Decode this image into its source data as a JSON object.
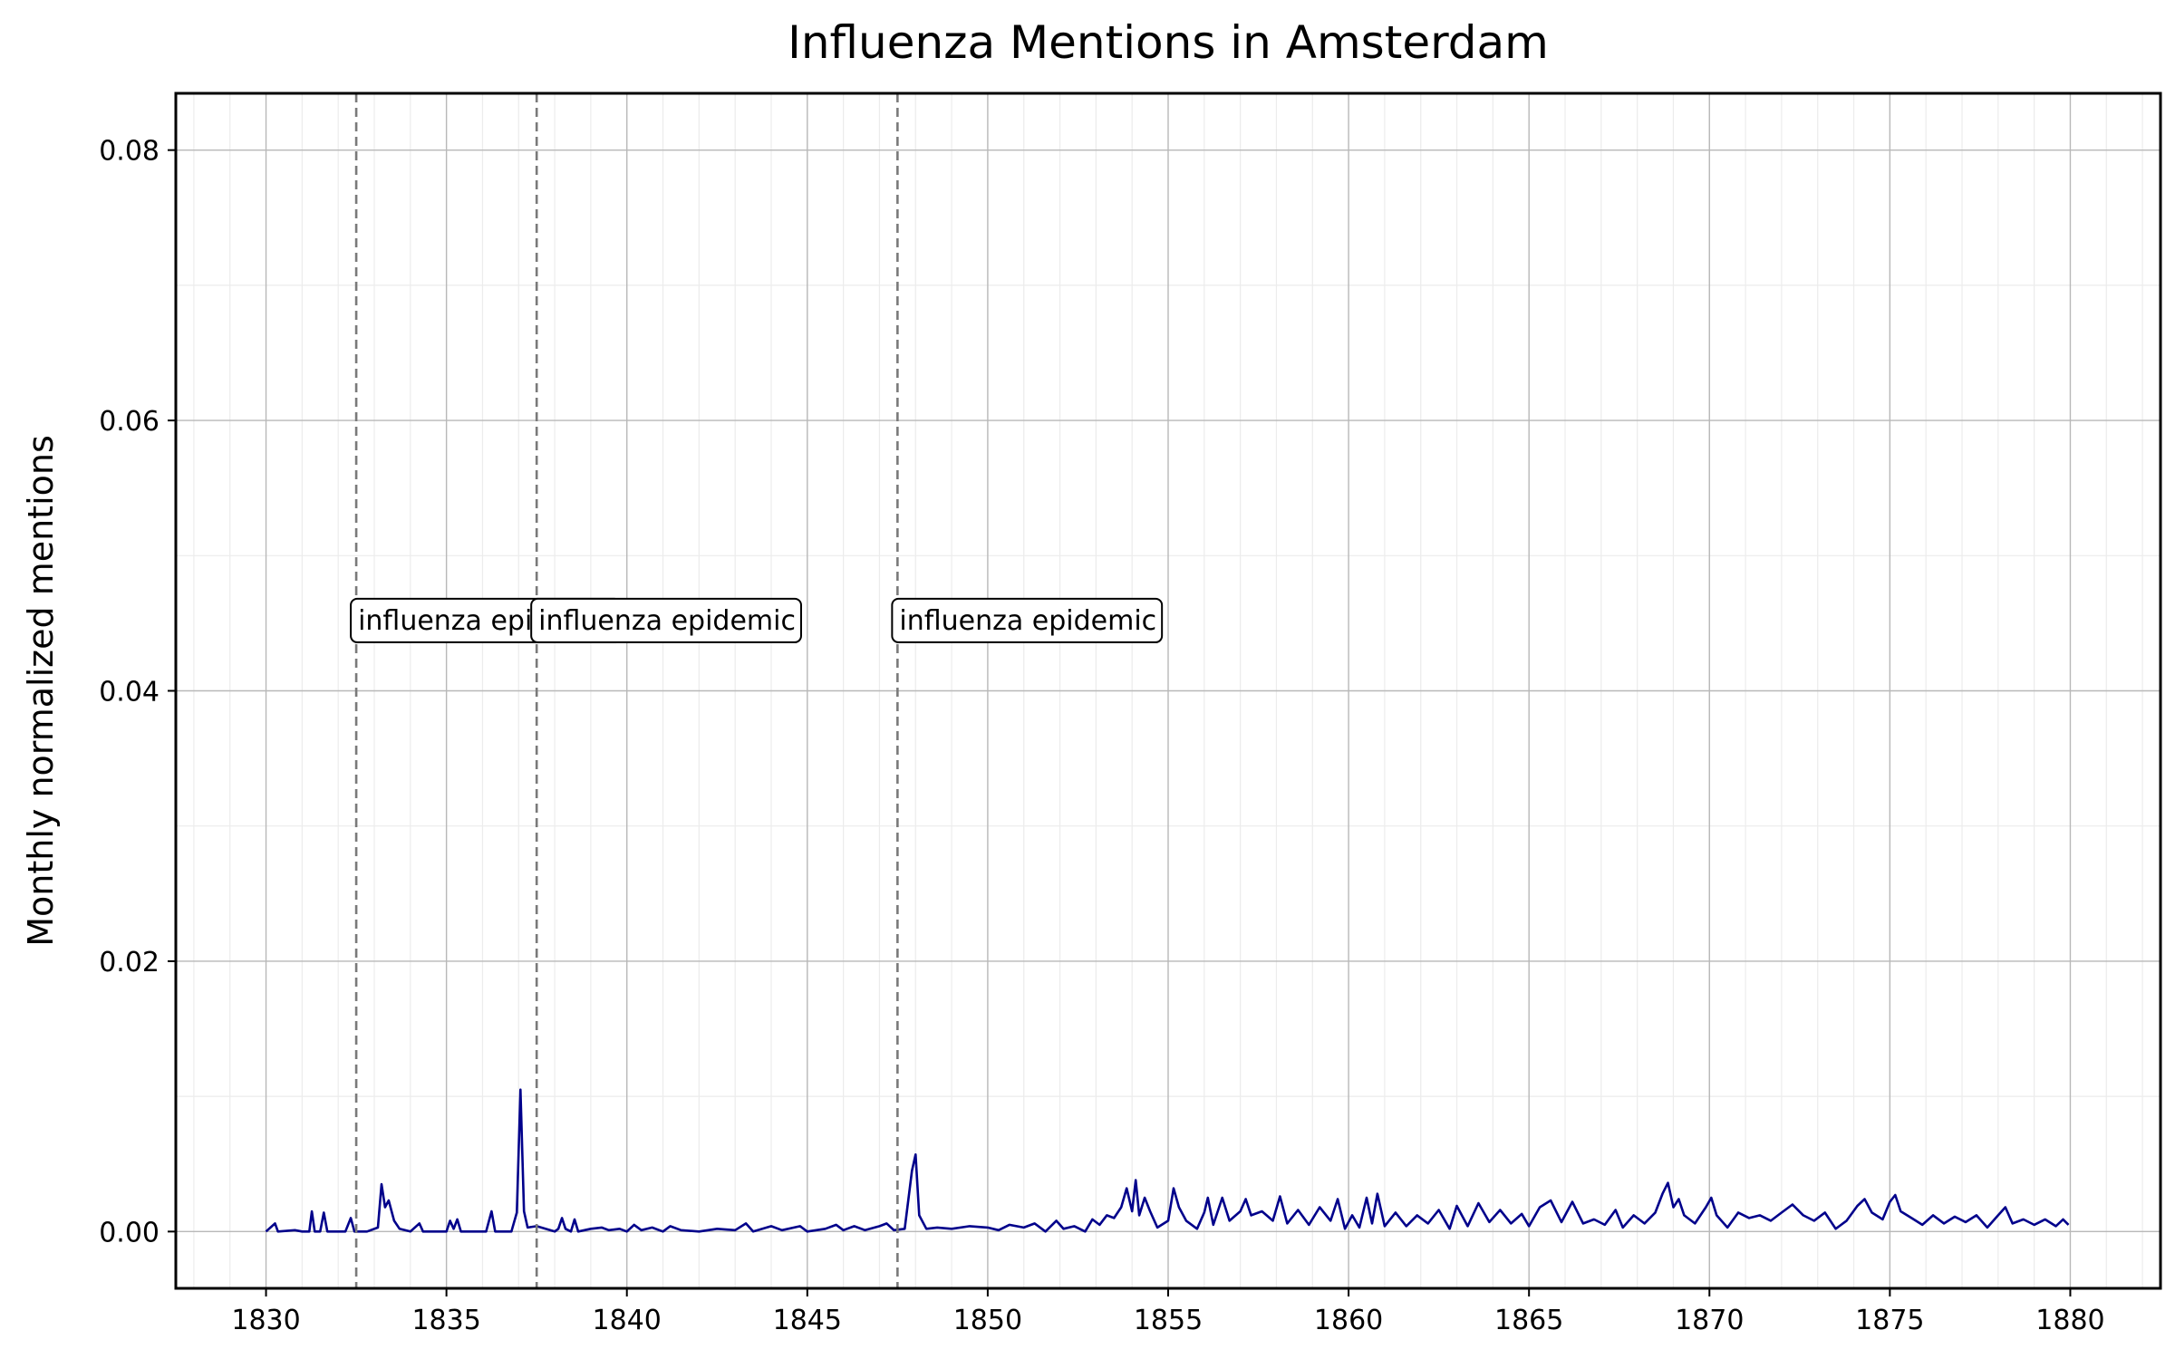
{
  "chart_data": {
    "type": "line",
    "title": "Influenza Mentions in Amsterdam",
    "xlabel": "",
    "ylabel": "Monthly normalized mentions",
    "xlim": [
      1827.5,
      1882.5
    ],
    "ylim": [
      -0.0042,
      0.0842
    ],
    "x_ticks": [
      1830,
      1835,
      1840,
      1845,
      1850,
      1855,
      1860,
      1865,
      1870,
      1875,
      1880
    ],
    "x_tick_labels": [
      "1830",
      "1835",
      "1840",
      "1845",
      "1850",
      "1855",
      "1860",
      "1865",
      "1870",
      "1875",
      "1880"
    ],
    "y_ticks": [
      0.0,
      0.02,
      0.04,
      0.06,
      0.08
    ],
    "y_tick_labels": [
      "0.00",
      "0.02",
      "0.04",
      "0.06",
      "0.08"
    ],
    "grid": true,
    "line_color": "#00008b",
    "series": [
      {
        "points": [
          [
            1830.0,
            0.0
          ],
          [
            1830.25,
            0.0006
          ],
          [
            1830.33,
            0.0
          ],
          [
            1830.8,
            0.0001
          ],
          [
            1831.0,
            0.0
          ],
          [
            1831.2,
            0.0
          ],
          [
            1831.27,
            0.0015
          ],
          [
            1831.35,
            0.0
          ],
          [
            1831.5,
            0.0
          ],
          [
            1831.6,
            0.0014
          ],
          [
            1831.7,
            0.0
          ],
          [
            1832.0,
            0.0
          ],
          [
            1832.2,
            0.0
          ],
          [
            1832.35,
            0.001
          ],
          [
            1832.45,
            0.0
          ],
          [
            1832.8,
            0.0
          ],
          [
            1833.1,
            0.0003
          ],
          [
            1833.2,
            0.0035
          ],
          [
            1833.3,
            0.0018
          ],
          [
            1833.4,
            0.0023
          ],
          [
            1833.55,
            0.0008
          ],
          [
            1833.7,
            0.0002
          ],
          [
            1834.0,
            0.0
          ],
          [
            1834.25,
            0.0006
          ],
          [
            1834.35,
            0.0
          ],
          [
            1834.8,
            0.0
          ],
          [
            1835.0,
            0.0
          ],
          [
            1835.1,
            0.0008
          ],
          [
            1835.2,
            0.0002
          ],
          [
            1835.3,
            0.0009
          ],
          [
            1835.4,
            0.0
          ],
          [
            1835.8,
            0.0
          ],
          [
            1836.1,
            0.0
          ],
          [
            1836.25,
            0.0015
          ],
          [
            1836.35,
            0.0
          ],
          [
            1836.8,
            0.0
          ],
          [
            1836.95,
            0.0014
          ],
          [
            1837.05,
            0.0105
          ],
          [
            1837.15,
            0.0015
          ],
          [
            1837.25,
            0.0003
          ],
          [
            1837.5,
            0.0004
          ],
          [
            1838.0,
            0.0
          ],
          [
            1838.1,
            0.0002
          ],
          [
            1838.2,
            0.001
          ],
          [
            1838.3,
            0.0002
          ],
          [
            1838.45,
            0.0
          ],
          [
            1838.55,
            0.0009
          ],
          [
            1838.65,
            0.0
          ],
          [
            1839.0,
            0.0002
          ],
          [
            1839.3,
            0.0003
          ],
          [
            1839.5,
            0.0001
          ],
          [
            1839.8,
            0.0002
          ],
          [
            1840.0,
            0.0
          ],
          [
            1840.2,
            0.0005
          ],
          [
            1840.4,
            0.0001
          ],
          [
            1840.7,
            0.0003
          ],
          [
            1841.0,
            0.0
          ],
          [
            1841.2,
            0.0004
          ],
          [
            1841.5,
            0.0001
          ],
          [
            1842.0,
            0.0
          ],
          [
            1842.5,
            0.0002
          ],
          [
            1843.0,
            0.0001
          ],
          [
            1843.3,
            0.0006
          ],
          [
            1843.5,
            0.0
          ],
          [
            1844.0,
            0.0004
          ],
          [
            1844.3,
            0.0001
          ],
          [
            1844.8,
            0.0004
          ],
          [
            1845.0,
            0.0
          ],
          [
            1845.5,
            0.0002
          ],
          [
            1845.8,
            0.0005
          ],
          [
            1846.0,
            0.0001
          ],
          [
            1846.3,
            0.0004
          ],
          [
            1846.6,
            0.0001
          ],
          [
            1847.0,
            0.0004
          ],
          [
            1847.2,
            0.0006
          ],
          [
            1847.4,
            0.0001
          ],
          [
            1847.7,
            0.0002
          ],
          [
            1847.9,
            0.0045
          ],
          [
            1848.0,
            0.0057
          ],
          [
            1848.1,
            0.0012
          ],
          [
            1848.3,
            0.0002
          ],
          [
            1848.6,
            0.0003
          ],
          [
            1849.0,
            0.0002
          ],
          [
            1849.5,
            0.0004
          ],
          [
            1850.0,
            0.0003
          ],
          [
            1850.3,
            0.0001
          ],
          [
            1850.6,
            0.0005
          ],
          [
            1851.0,
            0.0003
          ],
          [
            1851.3,
            0.0006
          ],
          [
            1851.6,
            0.0
          ],
          [
            1851.9,
            0.0008
          ],
          [
            1852.1,
            0.0002
          ],
          [
            1852.4,
            0.0004
          ],
          [
            1852.7,
            0.0
          ],
          [
            1852.9,
            0.0009
          ],
          [
            1853.1,
            0.0005
          ],
          [
            1853.3,
            0.0012
          ],
          [
            1853.5,
            0.001
          ],
          [
            1853.7,
            0.0018
          ],
          [
            1853.85,
            0.0032
          ],
          [
            1854.0,
            0.0015
          ],
          [
            1854.1,
            0.0038
          ],
          [
            1854.2,
            0.0012
          ],
          [
            1854.35,
            0.0025
          ],
          [
            1854.5,
            0.0015
          ],
          [
            1854.7,
            0.0003
          ],
          [
            1855.0,
            0.0008
          ],
          [
            1855.15,
            0.0032
          ],
          [
            1855.3,
            0.0018
          ],
          [
            1855.5,
            0.0008
          ],
          [
            1855.8,
            0.0002
          ],
          [
            1856.0,
            0.0014
          ],
          [
            1856.1,
            0.0025
          ],
          [
            1856.25,
            0.0005
          ],
          [
            1856.5,
            0.0025
          ],
          [
            1856.7,
            0.0008
          ],
          [
            1857.0,
            0.0015
          ],
          [
            1857.15,
            0.0024
          ],
          [
            1857.3,
            0.0012
          ],
          [
            1857.6,
            0.0015
          ],
          [
            1857.9,
            0.0008
          ],
          [
            1858.1,
            0.0026
          ],
          [
            1858.3,
            0.0006
          ],
          [
            1858.6,
            0.0016
          ],
          [
            1858.9,
            0.0005
          ],
          [
            1859.2,
            0.0018
          ],
          [
            1859.5,
            0.0008
          ],
          [
            1859.7,
            0.0024
          ],
          [
            1859.9,
            0.0002
          ],
          [
            1860.1,
            0.0012
          ],
          [
            1860.3,
            0.0003
          ],
          [
            1860.5,
            0.0025
          ],
          [
            1860.65,
            0.0006
          ],
          [
            1860.8,
            0.0028
          ],
          [
            1861.0,
            0.0004
          ],
          [
            1861.3,
            0.0014
          ],
          [
            1861.6,
            0.0004
          ],
          [
            1861.9,
            0.0012
          ],
          [
            1862.2,
            0.0006
          ],
          [
            1862.5,
            0.0016
          ],
          [
            1862.8,
            0.0002
          ],
          [
            1863.0,
            0.0019
          ],
          [
            1863.3,
            0.0004
          ],
          [
            1863.6,
            0.0021
          ],
          [
            1863.9,
            0.0007
          ],
          [
            1864.2,
            0.0016
          ],
          [
            1864.5,
            0.0006
          ],
          [
            1864.8,
            0.0013
          ],
          [
            1865.0,
            0.0004
          ],
          [
            1865.3,
            0.0018
          ],
          [
            1865.6,
            0.0023
          ],
          [
            1865.9,
            0.0007
          ],
          [
            1866.2,
            0.0022
          ],
          [
            1866.5,
            0.0006
          ],
          [
            1866.8,
            0.0009
          ],
          [
            1867.1,
            0.0005
          ],
          [
            1867.4,
            0.0016
          ],
          [
            1867.6,
            0.0003
          ],
          [
            1867.9,
            0.0012
          ],
          [
            1868.2,
            0.0006
          ],
          [
            1868.5,
            0.0014
          ],
          [
            1868.7,
            0.0028
          ],
          [
            1868.85,
            0.0036
          ],
          [
            1869.0,
            0.0018
          ],
          [
            1869.15,
            0.0024
          ],
          [
            1869.3,
            0.0012
          ],
          [
            1869.6,
            0.0006
          ],
          [
            1869.9,
            0.0018
          ],
          [
            1870.05,
            0.0025
          ],
          [
            1870.2,
            0.0012
          ],
          [
            1870.5,
            0.0003
          ],
          [
            1870.8,
            0.0014
          ],
          [
            1871.1,
            0.001
          ],
          [
            1871.4,
            0.0012
          ],
          [
            1871.7,
            0.0008
          ],
          [
            1872.0,
            0.0014
          ],
          [
            1872.3,
            0.002
          ],
          [
            1872.6,
            0.0012
          ],
          [
            1872.9,
            0.0008
          ],
          [
            1873.2,
            0.0014
          ],
          [
            1873.5,
            0.0002
          ],
          [
            1873.8,
            0.0008
          ],
          [
            1874.1,
            0.0019
          ],
          [
            1874.3,
            0.0024
          ],
          [
            1874.5,
            0.0014
          ],
          [
            1874.8,
            0.0009
          ],
          [
            1875.0,
            0.0022
          ],
          [
            1875.15,
            0.0027
          ],
          [
            1875.3,
            0.0015
          ],
          [
            1875.6,
            0.001
          ],
          [
            1875.9,
            0.0005
          ],
          [
            1876.2,
            0.0012
          ],
          [
            1876.5,
            0.0006
          ],
          [
            1876.8,
            0.0011
          ],
          [
            1877.1,
            0.0007
          ],
          [
            1877.4,
            0.0012
          ],
          [
            1877.7,
            0.0003
          ],
          [
            1878.0,
            0.0012
          ],
          [
            1878.2,
            0.0018
          ],
          [
            1878.4,
            0.0006
          ],
          [
            1878.7,
            0.0009
          ],
          [
            1879.0,
            0.0005
          ],
          [
            1879.3,
            0.0009
          ],
          [
            1879.6,
            0.0004
          ],
          [
            1879.8,
            0.0009
          ],
          [
            1879.95,
            0.0005
          ]
        ]
      }
    ],
    "vlines": [
      {
        "x": 1832.5,
        "label": "influenza epidemic"
      },
      {
        "x": 1837.5,
        "label": "influenza epidemic"
      },
      {
        "x": 1847.5,
        "label": "influenza epidemic"
      }
    ],
    "annotation_y": 0.0452
  }
}
